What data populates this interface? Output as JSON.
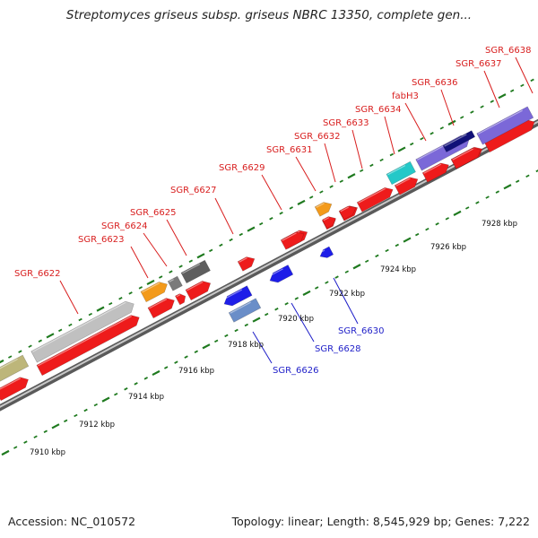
{
  "title": "Streptomyces griseus subsp. griseus NBRC 13350, complete gen...",
  "footer": {
    "accession": "Accession: NC_010572",
    "summary": "Topology: linear; Length: 8,545,929 bp; Genes: 7,222"
  },
  "colors": {
    "forward_label": "#d81e1e",
    "reverse_label": "#1e1ec8",
    "backbone": "#8a8a8a",
    "tick": "#1f7a1f"
  },
  "scale": {
    "unit": "kbp",
    "labels": [
      "7910 kbp",
      "7912 kbp",
      "7914 kbp",
      "7916 kbp",
      "7918 kbp",
      "7920 kbp",
      "7922 kbp",
      "7924 kbp",
      "7926 kbp",
      "7928 kbp"
    ]
  },
  "genes_forward": [
    {
      "label": "SGR_6622",
      "color": "#c0c0c0"
    },
    {
      "label": "SGR_6623",
      "color": "#f39a1b"
    },
    {
      "label": "SGR_6624",
      "color": "#7a7a7a"
    },
    {
      "label": "SGR_6625",
      "color": "#5e5e5e"
    },
    {
      "label": "SGR_6627",
      "color": "#ee1b1b"
    },
    {
      "label": "SGR_6629",
      "color": "#ee1b1b"
    },
    {
      "label": "SGR_6631",
      "color": "#f39a1b"
    },
    {
      "label": "SGR_6632",
      "color": "#ee1b1b"
    },
    {
      "label": "SGR_6633",
      "color": "#ee1b1b"
    },
    {
      "label": "SGR_6634",
      "color": "#24c8c8"
    },
    {
      "label": "fabH3",
      "color": "#7b68d8"
    },
    {
      "label": "SGR_6636",
      "color": "#101078"
    },
    {
      "label": "SGR_6637",
      "color": "#ee1b1b"
    },
    {
      "label": "SGR_6638",
      "color": "#7b68d8"
    }
  ],
  "genes_reverse": [
    {
      "label": "SGR_6626",
      "color": "#6a8ec8"
    },
    {
      "label": "SGR_6628",
      "color": "#1e1ee8"
    },
    {
      "label": "SGR_6630",
      "color": "#1e1ee8"
    }
  ]
}
